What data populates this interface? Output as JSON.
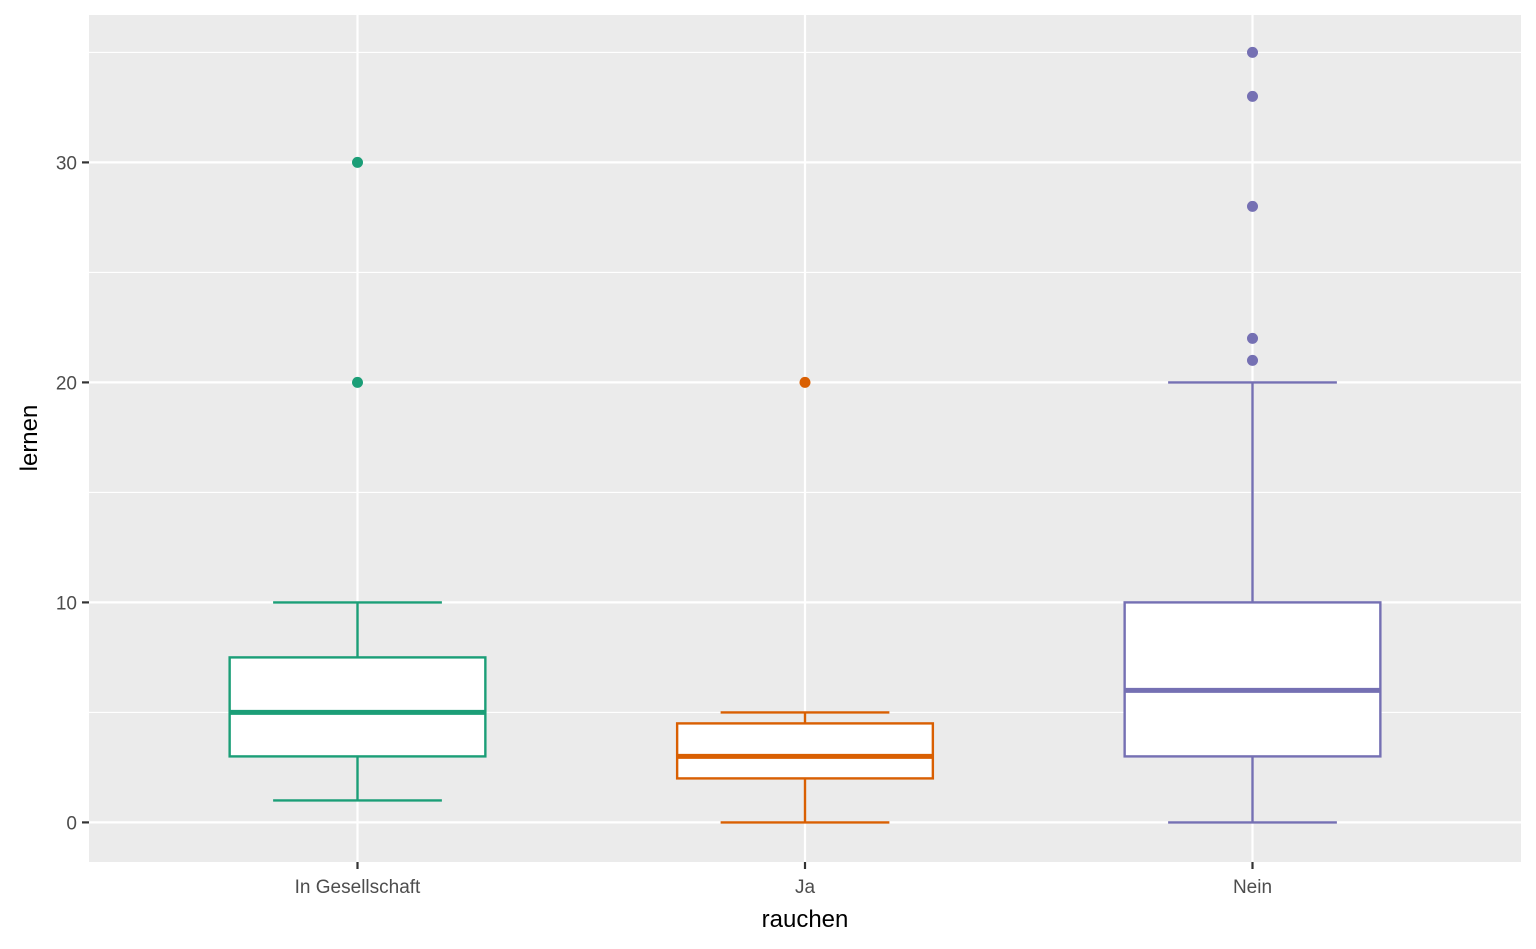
{
  "chart_data": {
    "type": "box",
    "xlabel": "rauchen",
    "ylabel": "lernen",
    "ylim": [
      -1.8,
      36.7
    ],
    "y_ticks": [
      0,
      10,
      20,
      30
    ],
    "y_tick_labels": [
      "0",
      "10",
      "20",
      "30"
    ],
    "grid": true,
    "legend": "none",
    "categories": [
      "In Gesellschaft",
      "Ja",
      "Nein"
    ],
    "boxes": [
      {
        "category": "In Gesellschaft",
        "color": "#1b9e77",
        "lower_whisker": 1,
        "q1": 3,
        "median": 5,
        "q3": 7.5,
        "upper_whisker": 10,
        "outliers": [
          20,
          30
        ]
      },
      {
        "category": "Ja",
        "color": "#d95f02",
        "lower_whisker": 0,
        "q1": 2,
        "median": 3,
        "q3": 4.5,
        "upper_whisker": 5,
        "outliers": [
          20
        ]
      },
      {
        "category": "Nein",
        "color": "#7570b3",
        "lower_whisker": 0,
        "q1": 3,
        "median": 6,
        "q3": 10,
        "upper_whisker": 20,
        "outliers": [
          21,
          22,
          28,
          33,
          35
        ]
      }
    ],
    "panel_background": "#ebebeb",
    "grid_color": "#ffffff",
    "box_fill": "#ffffff"
  }
}
